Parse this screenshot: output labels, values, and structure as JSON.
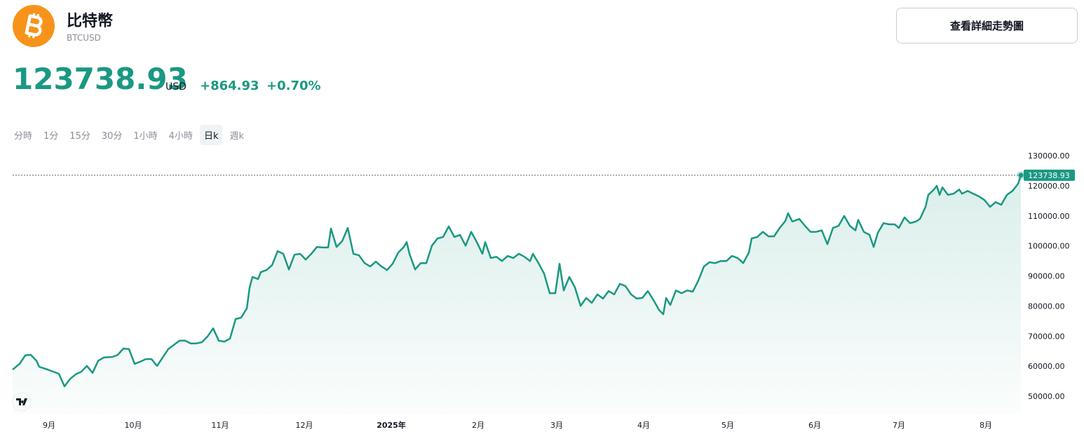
{
  "header": {
    "title": "比特幣",
    "symbol": "BTCUSD",
    "price": "123738.93",
    "currency": "USD",
    "change": "+864.93",
    "change_percent": "+0.70%"
  },
  "button": "查看詳細走勢圖",
  "tabs": {
    "items": [
      "分時",
      "1分",
      "15分",
      "30分",
      "1小時",
      "4小時",
      "日k",
      "週k"
    ],
    "active": 6
  },
  "chart_data": {
    "type": "line",
    "x": [
      0,
      2.5,
      4.5,
      6.5,
      8.5,
      9.5,
      12.5,
      14.5,
      16.5,
      18.5,
      20.5,
      22.5,
      24.5,
      26.5,
      28.5,
      30.5,
      32.5,
      35.5,
      37.5,
      39.5,
      41.5,
      43.5,
      45.5,
      47.5,
      49.5,
      51.5,
      53.5,
      55.5,
      57.5,
      59.5,
      61.5,
      63.5,
      65.5,
      67.5,
      69.5,
      71.5,
      73.5,
      75.5,
      77.5,
      79.5,
      81.5,
      83.5,
      84.5,
      85.5,
      87.5,
      88.5,
      90.5,
      92.5,
      94.5,
      96.5,
      98.5,
      100.5,
      102.5,
      104.5,
      106.5,
      108.5,
      110.5,
      112.5,
      113.5,
      115.5,
      117.5,
      119.5,
      121.5,
      123.5,
      125.5,
      127.5,
      129.5,
      131.5,
      133.5,
      135.5,
      137.5,
      139.5,
      140.5,
      141.5,
      143.5,
      145.5,
      147.5,
      149.5,
      151.5,
      153.5,
      155.5,
      157.5,
      159.5,
      161.5,
      163.5,
      165.5,
      167.5,
      168.5,
      170.5,
      172.5,
      174.5,
      176.5,
      178.5,
      180.5,
      182.5,
      184.5,
      185.5,
      187.5,
      189.5,
      191.5,
      193.5,
      195,
      196.5,
      198.5,
      200.5,
      202.5,
      204.5,
      206.5,
      208.5,
      210.5,
      212.5,
      214.5,
      216.5,
      218.5,
      220.5,
      222.5,
      224.5,
      226.5,
      228.5,
      230.5,
      232,
      233,
      234.5,
      236.5,
      238.5,
      240.5,
      242.5,
      244.5,
      246.5,
      248.5,
      250.5,
      252.5,
      254.5,
      256.5,
      258.5,
      260.5,
      262.5,
      263.5,
      265.5,
      267.5,
      269.5,
      271.5,
      273.5,
      275.5,
      276.5,
      278,
      280.5,
      282.5,
      284.5,
      286.5,
      288.5,
      290.5,
      292.5,
      294.5,
      296.5,
      298.5,
      300.5,
      301.5,
      303.5,
      305.5,
      307,
      308.5,
      310.5,
      312.5,
      314.5,
      316,
      318,
      320,
      322,
      323.5,
      325.5,
      326.5,
      328.5,
      329.5,
      330.5,
      331.5,
      333.5,
      335.5,
      337.5,
      338.5,
      340.5,
      342.5,
      344.5,
      346.5,
      348.5,
      350.5,
      352.5,
      354.5,
      356.5,
      358.5,
      359.5
    ],
    "series": [
      {
        "color": "#1a9882",
        "values": [
          59100,
          61000,
          63800,
          64000,
          62000,
          60000,
          59100,
          58400,
          57700,
          53500,
          56000,
          57500,
          58400,
          60300,
          58000,
          62000,
          63100,
          63300,
          64000,
          66100,
          65900,
          61000,
          61700,
          62600,
          62600,
          60300,
          63100,
          65900,
          67300,
          68700,
          68700,
          67800,
          67800,
          68200,
          70100,
          72800,
          68700,
          68400,
          69400,
          75900,
          76400,
          79400,
          86400,
          89900,
          89200,
          91500,
          92200,
          93800,
          98500,
          97600,
          92400,
          97300,
          97600,
          95700,
          97600,
          99900,
          99700,
          99700,
          106000,
          99900,
          101800,
          106200,
          97600,
          97100,
          94500,
          93400,
          95000,
          93400,
          92200,
          94300,
          98000,
          99900,
          101500,
          97600,
          92400,
          94500,
          94500,
          100300,
          102700,
          103200,
          106700,
          103200,
          103900,
          100300,
          104900,
          101500,
          97600,
          101500,
          96200,
          96600,
          95200,
          96900,
          96200,
          97600,
          96600,
          95200,
          97600,
          94500,
          91000,
          84500,
          84500,
          94300,
          85400,
          89900,
          86400,
          80300,
          82900,
          81300,
          84100,
          82700,
          85200,
          84100,
          87600,
          86900,
          84100,
          82700,
          82900,
          85200,
          82200,
          78900,
          77500,
          82900,
          80600,
          85400,
          84500,
          85400,
          85000,
          88700,
          93400,
          94800,
          94500,
          95200,
          95200,
          96900,
          96200,
          94500,
          98000,
          102700,
          103200,
          104900,
          103400,
          103400,
          106200,
          108500,
          111100,
          108300,
          109200,
          106900,
          104900,
          104900,
          105400,
          100800,
          106200,
          106900,
          110200,
          106900,
          105400,
          108900,
          104900,
          103900,
          99900,
          104600,
          107800,
          107400,
          107400,
          106200,
          109700,
          107800,
          108300,
          109200,
          113200,
          117200,
          119000,
          120200,
          117200,
          119700,
          117200,
          117600,
          119000,
          117600,
          118500,
          117600,
          116700,
          115500,
          113200,
          114800,
          113900,
          117200,
          118500,
          120900,
          123738.93
        ]
      }
    ],
    "xlim": [
      0,
      359.5
    ],
    "xticks": [
      {
        "value": 13,
        "label": "9月"
      },
      {
        "value": 43,
        "label": "10月"
      },
      {
        "value": 74,
        "label": "11月"
      },
      {
        "value": 104,
        "label": "12月"
      },
      {
        "value": 135,
        "label": "2025年"
      },
      {
        "value": 166,
        "label": "2月"
      },
      {
        "value": 194,
        "label": "3月"
      },
      {
        "value": 225,
        "label": "4月"
      },
      {
        "value": 255,
        "label": "5月"
      },
      {
        "value": 286,
        "label": "6月"
      },
      {
        "value": 316,
        "label": "7月"
      },
      {
        "value": 347,
        "label": "8月"
      }
    ],
    "ylim": [
      50000,
      130000
    ],
    "yticks": [
      {
        "value": 50000,
        "label": "50000.00"
      },
      {
        "value": 60000,
        "label": "60000.00"
      },
      {
        "value": 70000,
        "label": "70000.00"
      },
      {
        "value": 80000,
        "label": "80000.00"
      },
      {
        "value": 90000,
        "label": "90000.00"
      },
      {
        "value": 100000,
        "label": "100000.00"
      },
      {
        "value": 110000,
        "label": "110000.00"
      },
      {
        "value": 120000,
        "label": "120000.00"
      },
      {
        "value": 130000,
        "label": "130000.00"
      }
    ],
    "grid": false
  }
}
